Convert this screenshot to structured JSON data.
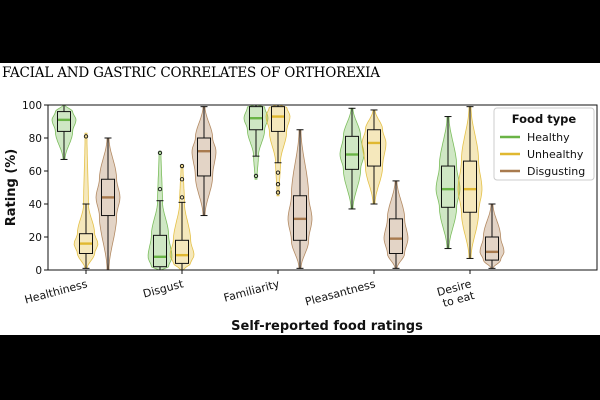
{
  "header": {
    "running_title": "FACIAL AND GASTRIC CORRELATES OF ORTHOREXIA"
  },
  "chart_data": {
    "type": "violin",
    "xlabel": "Self-reported food ratings",
    "ylabel": "Rating (%)",
    "ylim": [
      0,
      100
    ],
    "yticks": [
      0,
      20,
      40,
      60,
      80,
      100
    ],
    "grid": false,
    "legend": {
      "title": "Food type",
      "placement": "top-right"
    },
    "categories": [
      "Healthiness",
      "Disgust",
      "Familiarity",
      "Pleasantness",
      "Desire\nto eat"
    ],
    "colors": {
      "Healthy": "#6ab446",
      "Unhealthy": "#e0b830",
      "Disgusting": "#a87a4e"
    },
    "series": [
      {
        "name": "Healthy",
        "boxes": [
          {
            "whislo": 67,
            "q1": 84,
            "med": 91,
            "q3": 96,
            "whishi": 100,
            "fliers": [],
            "vmin": 67,
            "vmax": 100
          },
          {
            "whislo": 0,
            "q1": 2,
            "med": 8,
            "q3": 21,
            "whishi": 42,
            "fliers": [
              49,
              71
            ],
            "vmin": 0,
            "vmax": 72
          },
          {
            "whislo": 69,
            "q1": 85,
            "med": 92,
            "q3": 99,
            "whishi": 100,
            "fliers": [
              57
            ],
            "vmin": 55,
            "vmax": 100
          },
          {
            "whislo": 37,
            "q1": 61,
            "med": 70,
            "q3": 81,
            "whishi": 98,
            "fliers": [],
            "vmin": 37,
            "vmax": 98
          },
          {
            "whislo": 13,
            "q1": 38,
            "med": 49,
            "q3": 63,
            "whishi": 93,
            "fliers": [],
            "vmin": 13,
            "vmax": 93
          }
        ]
      },
      {
        "name": "Unhealthy",
        "boxes": [
          {
            "whislo": 1,
            "q1": 10,
            "med": 16,
            "q3": 22,
            "whishi": 40,
            "fliers": [
              81
            ],
            "vmin": 1,
            "vmax": 83
          },
          {
            "whislo": 0,
            "q1": 4,
            "med": 9,
            "q3": 18,
            "whishi": 41,
            "fliers": [
              44,
              55,
              63
            ],
            "vmin": 0,
            "vmax": 64
          },
          {
            "whislo": 65,
            "q1": 84,
            "med": 93,
            "q3": 99,
            "whishi": 100,
            "fliers": [
              47,
              52,
              59
            ],
            "vmin": 45,
            "vmax": 100
          },
          {
            "whislo": 40,
            "q1": 63,
            "med": 77,
            "q3": 85,
            "whishi": 97,
            "fliers": [],
            "vmin": 40,
            "vmax": 97
          },
          {
            "whislo": 7,
            "q1": 35,
            "med": 49,
            "q3": 66,
            "whishi": 99,
            "fliers": [],
            "vmin": 7,
            "vmax": 99
          }
        ]
      },
      {
        "name": "Disgusting",
        "boxes": [
          {
            "whislo": 0,
            "q1": 33,
            "med": 44,
            "q3": 55,
            "whishi": 80,
            "fliers": [],
            "vmin": 0,
            "vmax": 80
          },
          {
            "whislo": 33,
            "q1": 57,
            "med": 72,
            "q3": 80,
            "whishi": 99,
            "fliers": [],
            "vmin": 33,
            "vmax": 99
          },
          {
            "whislo": 1,
            "q1": 18,
            "med": 31,
            "q3": 45,
            "whishi": 85,
            "fliers": [],
            "vmin": 1,
            "vmax": 85
          },
          {
            "whislo": 1,
            "q1": 10,
            "med": 19,
            "q3": 31,
            "whishi": 54,
            "fliers": [],
            "vmin": 1,
            "vmax": 54
          },
          {
            "whislo": 1,
            "q1": 6,
            "med": 11,
            "q3": 20,
            "whishi": 40,
            "fliers": [],
            "vmin": 1,
            "vmax": 40
          }
        ]
      }
    ]
  }
}
